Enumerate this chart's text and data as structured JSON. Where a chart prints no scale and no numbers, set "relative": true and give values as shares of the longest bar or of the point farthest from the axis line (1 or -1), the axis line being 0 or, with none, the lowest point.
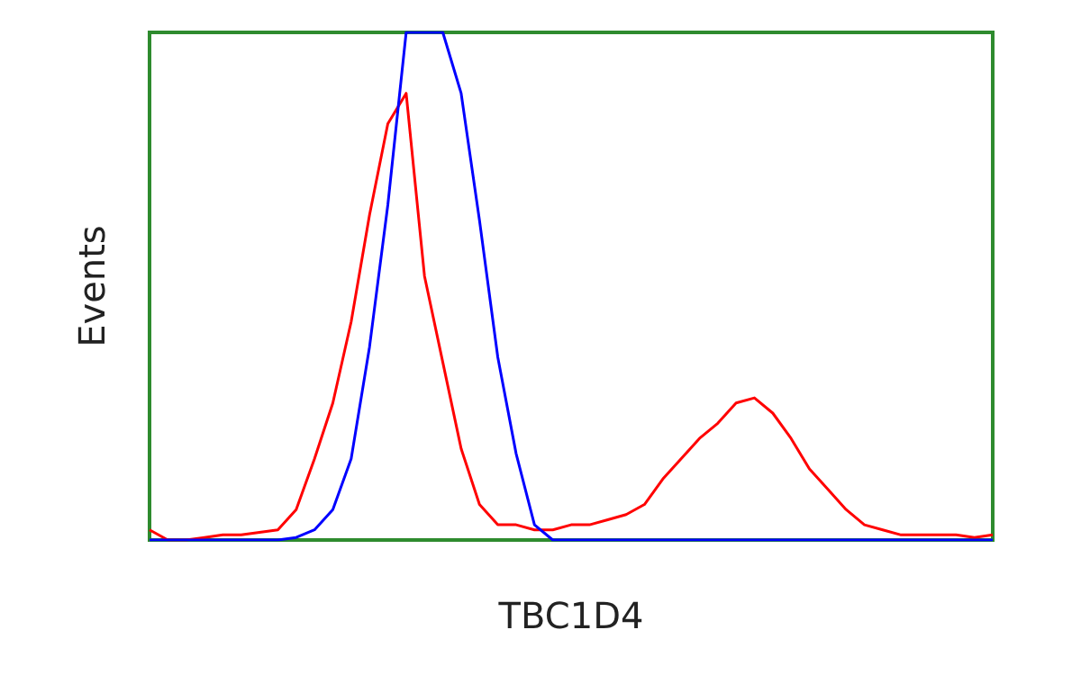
{
  "chart_data": {
    "type": "line",
    "relative": true,
    "xlabel": "TBC1D4",
    "ylabel": "Events",
    "grid": false,
    "marker": "none",
    "line_style": "solid",
    "categories": [
      null,
      null,
      null,
      null,
      null,
      null,
      null,
      null,
      null,
      null,
      null,
      null,
      null,
      null,
      null,
      null,
      null,
      null,
      null,
      null,
      null,
      null,
      null,
      null,
      null,
      null,
      null,
      null,
      null,
      null,
      null,
      null,
      null,
      null,
      null,
      null,
      null,
      null,
      null,
      null,
      null,
      null,
      null,
      null,
      null,
      null,
      null
    ],
    "series": [
      {
        "color": "#ff0000",
        "values": [
          0.02,
          0,
          0,
          0.005,
          0.01,
          0.01,
          0.015,
          0.02,
          0.06,
          0.16,
          0.27,
          0.43,
          0.64,
          0.82,
          0.88,
          0.52,
          0.35,
          0.18,
          0.07,
          0.03,
          0.03,
          0.02,
          0.02,
          0.03,
          0.03,
          0.04,
          0.05,
          0.07,
          0.12,
          0.16,
          0.2,
          0.23,
          0.27,
          0.28,
          0.25,
          0.2,
          0.14,
          0.1,
          0.06,
          0.03,
          0.02,
          0.01,
          0.01,
          0.01,
          0.01,
          0.005,
          0.01
        ]
      },
      {
        "color": "#0000ff",
        "values": [
          0,
          0,
          0,
          0,
          0,
          0,
          0,
          0,
          0.005,
          0.02,
          0.06,
          0.16,
          0.38,
          0.66,
          1,
          1,
          1,
          0.88,
          0.63,
          0.36,
          0.17,
          0.03,
          0,
          0,
          0,
          0,
          0,
          0,
          0,
          0,
          0,
          0,
          0,
          0,
          0,
          0,
          0,
          0,
          0,
          0,
          0,
          0,
          0,
          0,
          0,
          0,
          0
        ]
      }
    ]
  }
}
